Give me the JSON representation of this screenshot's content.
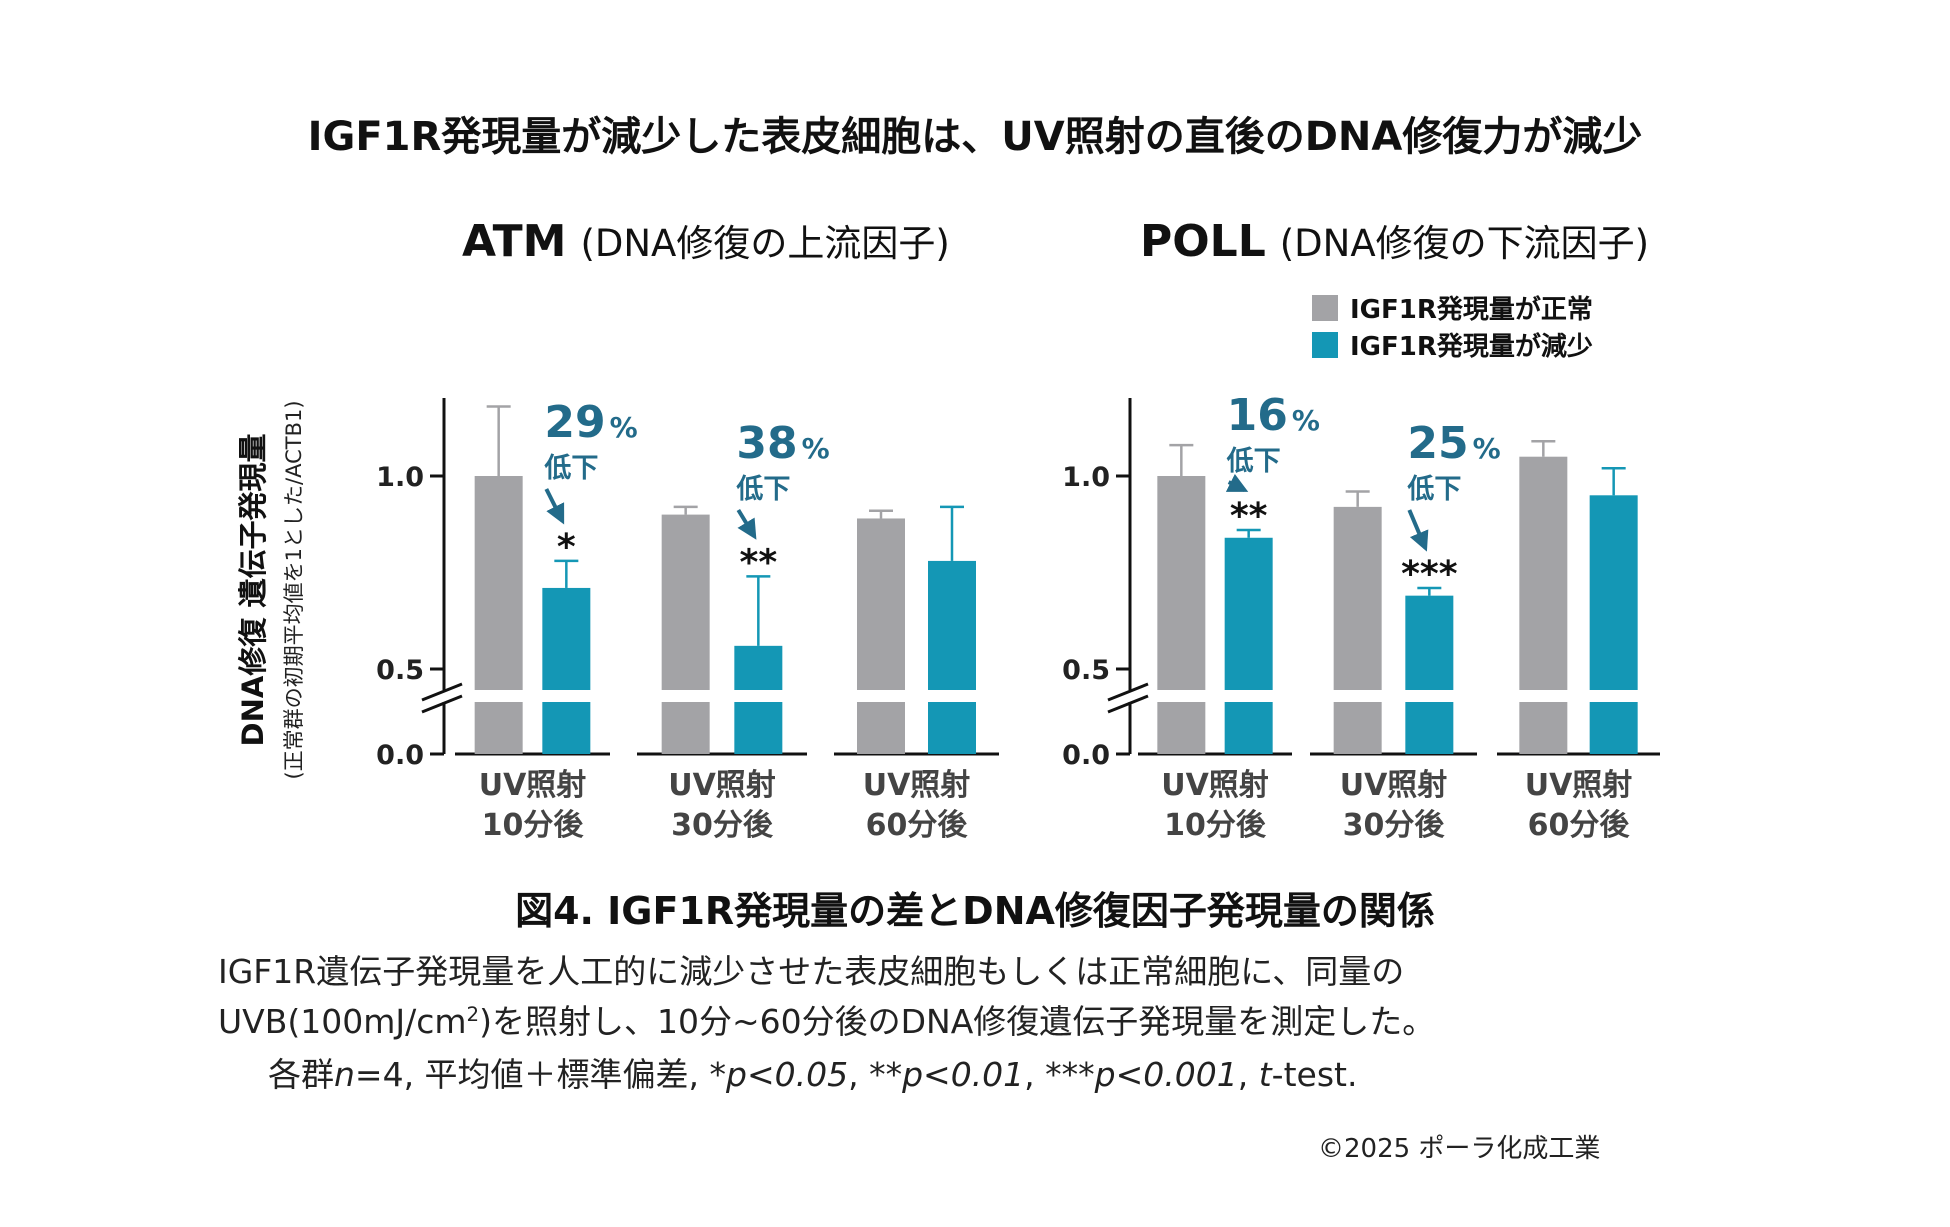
{
  "title": "IGF1R発現量が減少した表皮細胞は、UV照射の直後のDNA修復力が減少",
  "colors": {
    "normal": "#a3a3a6",
    "reduced": "#1497b5",
    "annotation": "#236b8a",
    "axis": "#111111"
  },
  "y_axis": {
    "label": "DNA修復 遺伝子発現量",
    "sublabel": "(正常群の初期平均値を1とした/ACTB1)"
  },
  "legend": {
    "items": [
      {
        "label": "IGF1R発現量が正常",
        "color": "#a3a3a6"
      },
      {
        "label": "IGF1R発現量が減少",
        "color": "#1497b5"
      }
    ]
  },
  "chart_data": [
    {
      "type": "bar",
      "title": "ATM",
      "subtitle": "(DNA修復の上流因子)",
      "categories": [
        "UV照射 10分後",
        "UV照射 30分後",
        "UV照射 60分後"
      ],
      "category_lines": [
        [
          "UV照射",
          "10分後"
        ],
        [
          "UV照射",
          "30分後"
        ],
        [
          "UV照射",
          "60分後"
        ]
      ],
      "series": [
        {
          "name": "IGF1R発現量が正常",
          "values": [
            1.0,
            0.9,
            0.89
          ],
          "errors": [
            0.18,
            0.02,
            0.02
          ]
        },
        {
          "name": "IGF1R発現量が減少",
          "values": [
            0.71,
            0.56,
            0.78
          ],
          "errors": [
            0.07,
            0.18,
            0.14
          ]
        }
      ],
      "significance": [
        "*",
        "**",
        ""
      ],
      "reductions": [
        {
          "category": 0,
          "value": "29",
          "unit": "%",
          "label": "低下"
        },
        {
          "category": 1,
          "value": "38",
          "unit": "%",
          "label": "低下"
        }
      ],
      "y_ticks": [
        0.0,
        0.5,
        1.0
      ],
      "y_tick_labels": [
        "0.0",
        "0.5",
        "1.0"
      ],
      "axis_break": [
        0.0,
        0.5
      ],
      "ylim": [
        0.0,
        1.2
      ]
    },
    {
      "type": "bar",
      "title": "POLL",
      "subtitle": "(DNA修復の下流因子)",
      "categories": [
        "UV照射 10分後",
        "UV照射 30分後",
        "UV照射 60分後"
      ],
      "category_lines": [
        [
          "UV照射",
          "10分後"
        ],
        [
          "UV照射",
          "30分後"
        ],
        [
          "UV照射",
          "60分後"
        ]
      ],
      "series": [
        {
          "name": "IGF1R発現量が正常",
          "values": [
            1.0,
            0.92,
            1.05
          ],
          "errors": [
            0.08,
            0.04,
            0.04
          ]
        },
        {
          "name": "IGF1R発現量が減少",
          "values": [
            0.84,
            0.69,
            0.95
          ],
          "errors": [
            0.02,
            0.02,
            0.07
          ]
        }
      ],
      "significance": [
        "**",
        "***",
        ""
      ],
      "reductions": [
        {
          "category": 0,
          "value": "16",
          "unit": "%",
          "label": "低下"
        },
        {
          "category": 1,
          "value": "25",
          "unit": "%",
          "label": "低下"
        }
      ],
      "y_ticks": [
        0.0,
        0.5,
        1.0
      ],
      "y_tick_labels": [
        "0.0",
        "0.5",
        "1.0"
      ],
      "axis_break": [
        0.0,
        0.5
      ],
      "ylim": [
        0.0,
        1.2
      ]
    }
  ],
  "caption": {
    "title": "図4. IGF1R発現量の差とDNA修復因子発現量の関係",
    "line1": "IGF1R遺伝子発現量を人工的に減少させた表皮細胞もしくは正常細胞に、同量の",
    "line2_pre": "UVB(100mJ/cm",
    "line2_sup": "2",
    "line2_post": ")を照射し、10分~60分後のDNA修復遺伝子発現量を測定した。",
    "line3": {
      "p1": "各群",
      "n_var": "n",
      "p2": "=4, 平均値＋標準偏差, ",
      "s1": "*",
      "e1": "p<0.05",
      "sep1": ", ",
      "s2": "**",
      "e2": "p<0.01",
      "sep2": ", ",
      "s3": "***",
      "e3": "p<0.001",
      "sep3": ", ",
      "t_var": "t",
      "tail": "-test."
    }
  },
  "copyright": "©2025 ポーラ化成工業"
}
